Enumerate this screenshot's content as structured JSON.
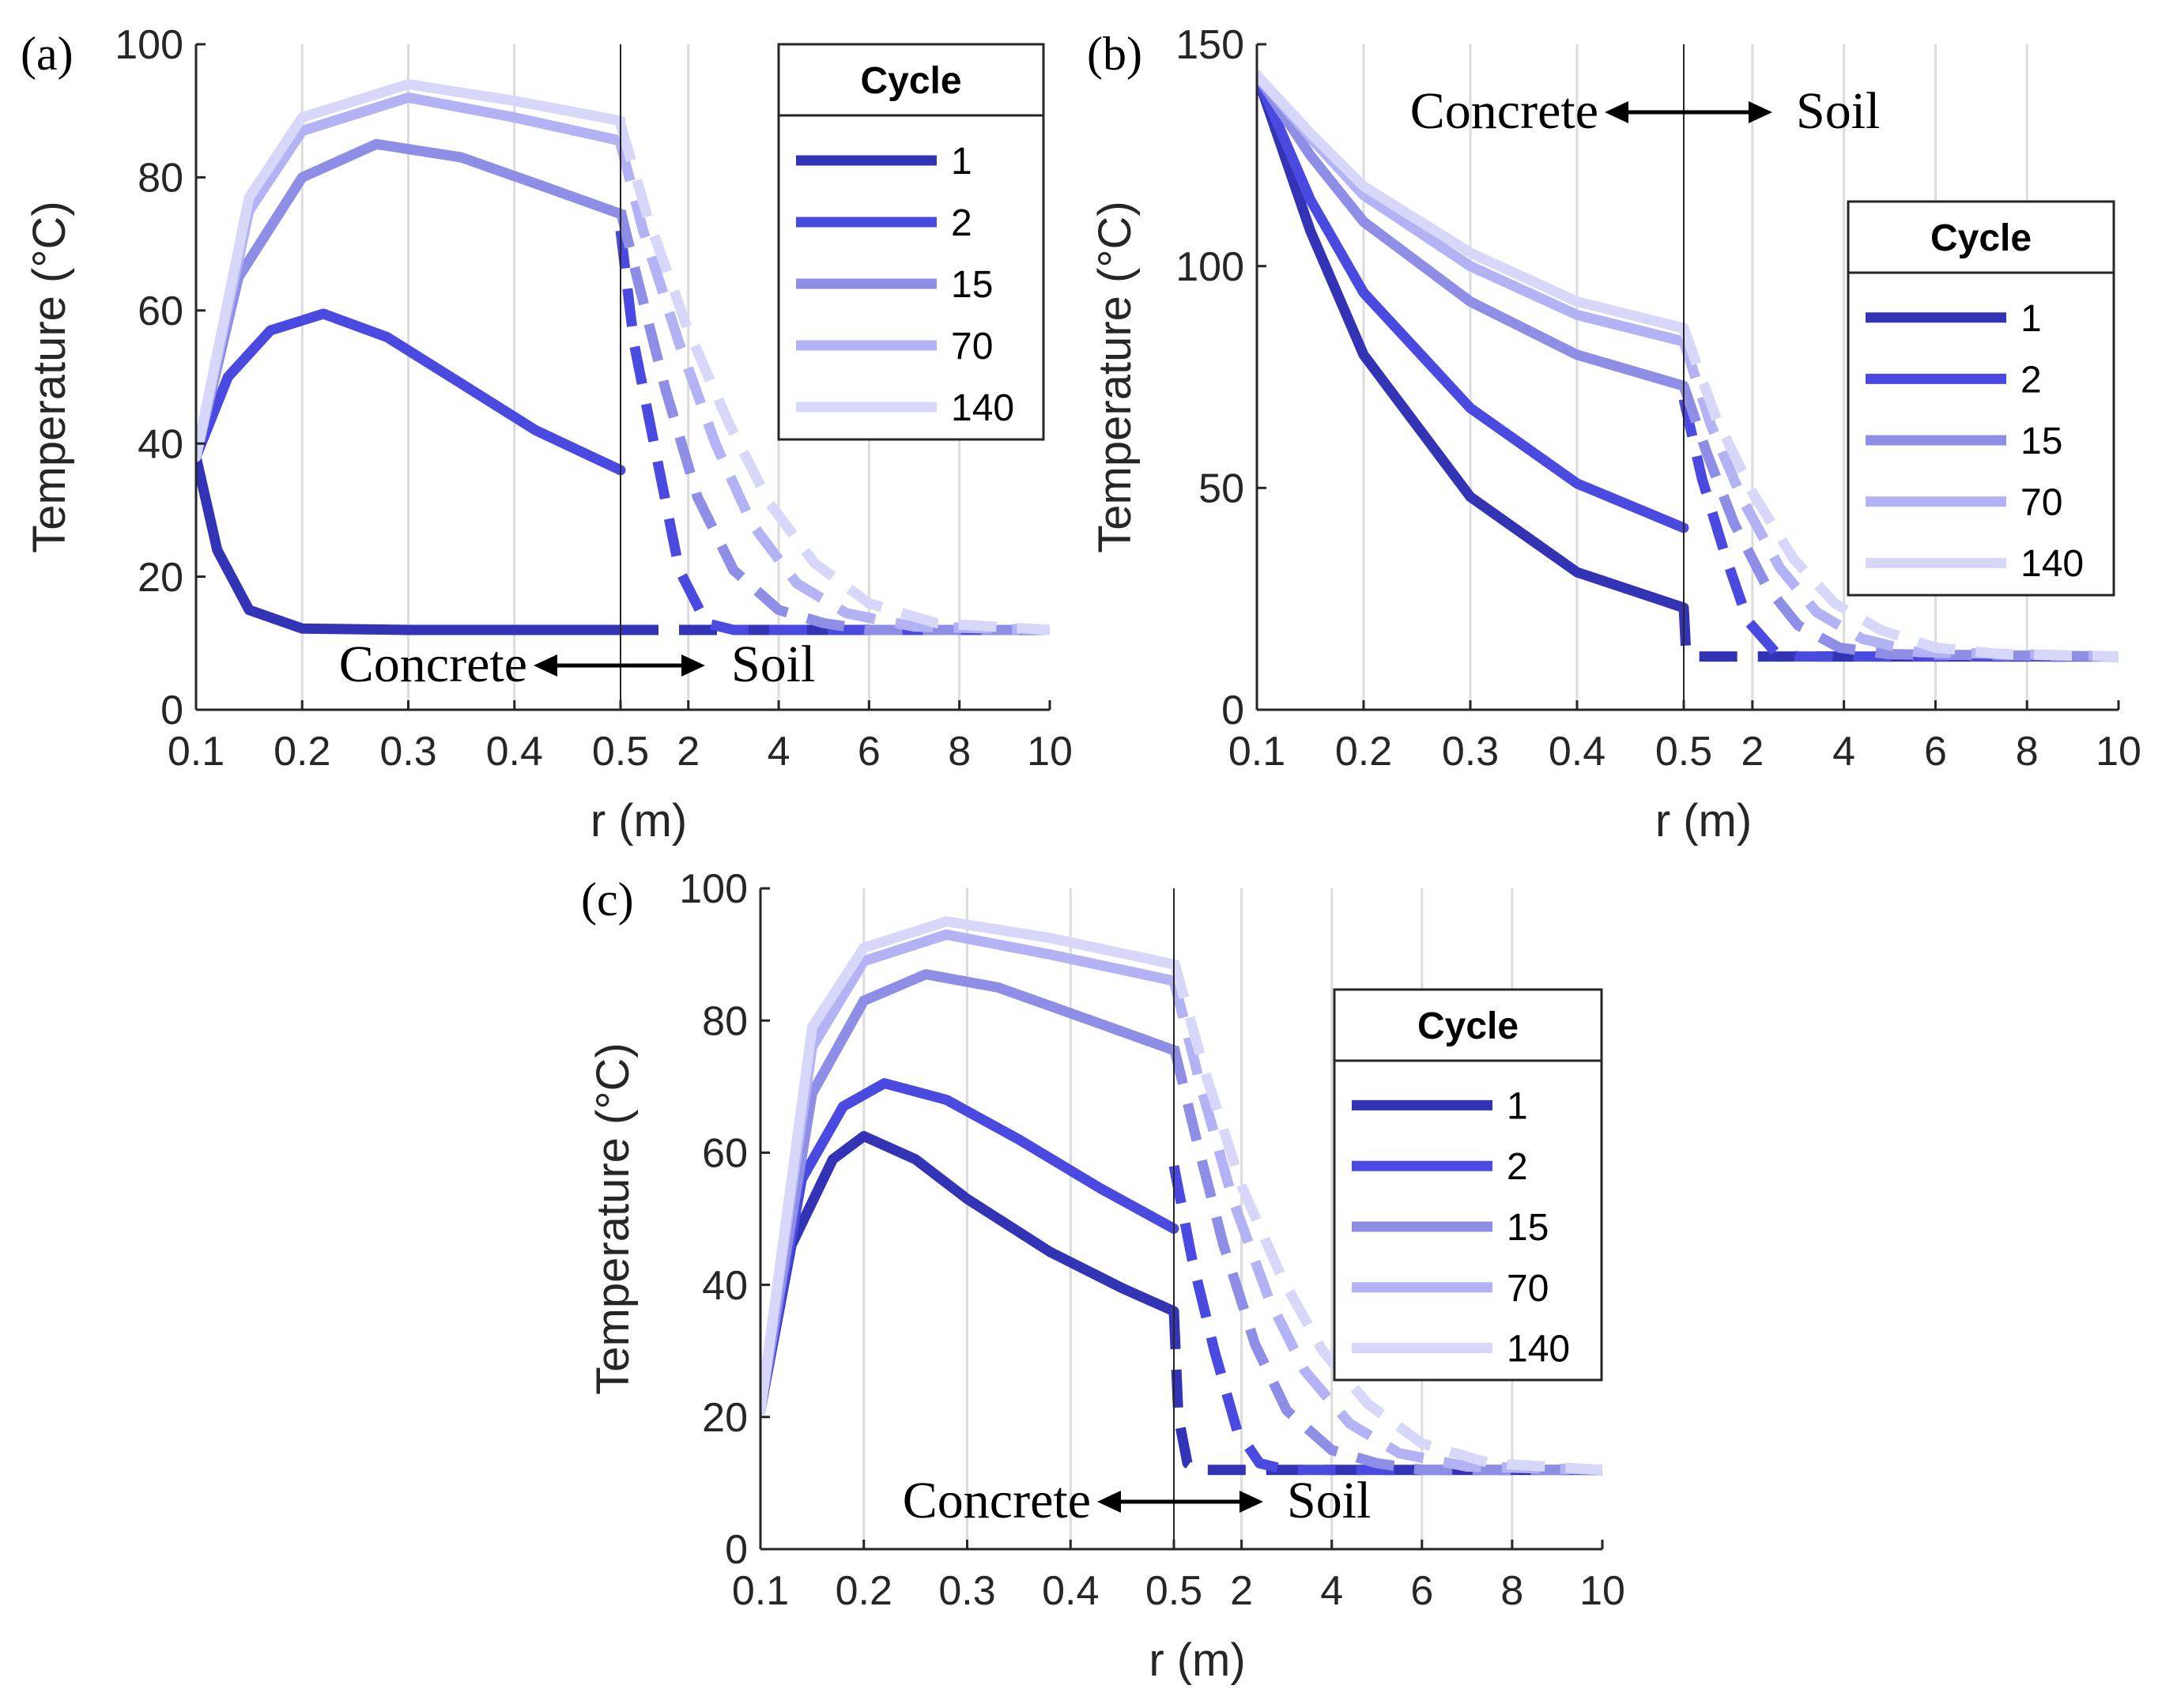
{
  "chart_data": [
    {
      "type": "line",
      "panel_label": "(a)",
      "xlabel": "r (m)",
      "ylabel": "Temperature (°C)",
      "ylim": [
        0,
        100
      ],
      "yticks": [
        "0",
        "20",
        "40",
        "60",
        "80",
        "100"
      ],
      "concrete_xlim": [
        0.1,
        0.5
      ],
      "soil_xlim": [
        0.5,
        10
      ],
      "xticks_concrete": [
        "0.1",
        "0.2",
        "0.3",
        "0.4",
        "0.5"
      ],
      "xticks_soil": [
        "2",
        "4",
        "6",
        "8",
        "10"
      ],
      "region_left": "Concrete",
      "region_right": "Soil",
      "legend_title": "Cycle",
      "ambient": 12,
      "series": [
        {
          "name": "1",
          "color": "#3333b5",
          "concrete": [
            [
              0.1,
              38
            ],
            [
              0.12,
              24
            ],
            [
              0.15,
              15
            ],
            [
              0.2,
              12.2
            ],
            [
              0.3,
              12
            ],
            [
              0.5,
              12
            ]
          ],
          "soil": [
            [
              0.5,
              12
            ],
            [
              1,
              12
            ],
            [
              10,
              12
            ]
          ]
        },
        {
          "name": "2",
          "color": "#4a4ae0",
          "concrete": [
            [
              0.1,
              38
            ],
            [
              0.13,
              50
            ],
            [
              0.17,
              57
            ],
            [
              0.22,
              59.5
            ],
            [
              0.28,
              56
            ],
            [
              0.35,
              49
            ],
            [
              0.42,
              42
            ],
            [
              0.5,
              36
            ]
          ],
          "soil": [
            [
              0.5,
              72
            ],
            [
              0.8,
              55
            ],
            [
              1.3,
              38
            ],
            [
              1.8,
              21
            ],
            [
              2.4,
              13
            ],
            [
              3,
              12
            ],
            [
              10,
              12
            ]
          ]
        },
        {
          "name": "15",
          "color": "#8e8ee6",
          "concrete": [
            [
              0.1,
              38
            ],
            [
              0.14,
              65
            ],
            [
              0.2,
              80
            ],
            [
              0.27,
              85
            ],
            [
              0.35,
              83
            ],
            [
              0.43,
              78.5
            ],
            [
              0.5,
              74.5
            ]
          ],
          "soil": [
            [
              0.5,
              75
            ],
            [
              0.9,
              64
            ],
            [
              1.5,
              48
            ],
            [
              2.2,
              32
            ],
            [
              3,
              21
            ],
            [
              4,
              15
            ],
            [
              5,
              13
            ],
            [
              6,
              12
            ],
            [
              10,
              12
            ]
          ]
        },
        {
          "name": "70",
          "color": "#b2b2f4",
          "concrete": [
            [
              0.1,
              38
            ],
            [
              0.15,
              75
            ],
            [
              0.2,
              87
            ],
            [
              0.3,
              92
            ],
            [
              0.4,
              89
            ],
            [
              0.5,
              85.5
            ]
          ],
          "soil": [
            [
              0.5,
              85
            ],
            [
              1,
              72
            ],
            [
              1.8,
              55
            ],
            [
              2.6,
              40
            ],
            [
              3.4,
              28
            ],
            [
              4.4,
              19
            ],
            [
              5.5,
              14.5
            ],
            [
              7,
              12.5
            ],
            [
              10,
              12
            ]
          ]
        },
        {
          "name": "140",
          "color": "#d7d7f9",
          "concrete": [
            [
              0.1,
              38
            ],
            [
              0.15,
              77
            ],
            [
              0.2,
              89
            ],
            [
              0.3,
              94
            ],
            [
              0.4,
              91.5
            ],
            [
              0.5,
              88.5
            ]
          ],
          "soil": [
            [
              0.5,
              88
            ],
            [
              1.1,
              74
            ],
            [
              2,
              57
            ],
            [
              2.9,
              43
            ],
            [
              3.8,
              31
            ],
            [
              4.8,
              22
            ],
            [
              6,
              16
            ],
            [
              7.5,
              13
            ],
            [
              10,
              12
            ]
          ]
        }
      ]
    },
    {
      "type": "line",
      "panel_label": "(b)",
      "xlabel": "r (m)",
      "ylabel": "Temperature (°C)",
      "ylim": [
        0,
        150
      ],
      "yticks": [
        "0",
        "50",
        "100",
        "150"
      ],
      "concrete_xlim": [
        0.1,
        0.5
      ],
      "soil_xlim": [
        0.5,
        10
      ],
      "xticks_concrete": [
        "0.1",
        "0.2",
        "0.3",
        "0.4",
        "0.5"
      ],
      "xticks_soil": [
        "2",
        "4",
        "6",
        "8",
        "10"
      ],
      "region_left": "Concrete",
      "region_right": "Soil",
      "legend_title": "Cycle",
      "ambient": 12,
      "series": [
        {
          "name": "1",
          "color": "#3333b5",
          "concrete": [
            [
              0.1,
              143
            ],
            [
              0.15,
              108
            ],
            [
              0.2,
              80
            ],
            [
              0.3,
              48
            ],
            [
              0.4,
              31
            ],
            [
              0.5,
              23
            ]
          ],
          "soil": [
            [
              0.5,
              23
            ],
            [
              0.55,
              13
            ],
            [
              0.8,
              12
            ],
            [
              10,
              12
            ]
          ]
        },
        {
          "name": "2",
          "color": "#4a4ae0",
          "concrete": [
            [
              0.1,
              143
            ],
            [
              0.15,
              115
            ],
            [
              0.2,
              94
            ],
            [
              0.3,
              68
            ],
            [
              0.4,
              51
            ],
            [
              0.5,
              41
            ]
          ],
          "soil": [
            [
              0.5,
              70
            ],
            [
              0.9,
              52
            ],
            [
              1.4,
              35
            ],
            [
              1.9,
              20
            ],
            [
              2.5,
              13
            ],
            [
              3,
              12
            ],
            [
              10,
              12
            ]
          ]
        },
        {
          "name": "15",
          "color": "#8e8ee6",
          "concrete": [
            [
              0.1,
              143
            ],
            [
              0.15,
              125
            ],
            [
              0.2,
              110
            ],
            [
              0.3,
              92
            ],
            [
              0.4,
              80
            ],
            [
              0.5,
              73
            ]
          ],
          "soil": [
            [
              0.5,
              73
            ],
            [
              1,
              58
            ],
            [
              1.6,
              42
            ],
            [
              2.3,
              28
            ],
            [
              3,
              19
            ],
            [
              3.9,
              14
            ],
            [
              5,
              12.5
            ],
            [
              10,
              12
            ]
          ]
        },
        {
          "name": "70",
          "color": "#b2b2f4",
          "concrete": [
            [
              0.1,
              143
            ],
            [
              0.15,
              129
            ],
            [
              0.2,
              116
            ],
            [
              0.3,
              100
            ],
            [
              0.4,
              89
            ],
            [
              0.5,
              83
            ]
          ],
          "soil": [
            [
              0.5,
              83
            ],
            [
              1.1,
              64
            ],
            [
              1.8,
              47
            ],
            [
              2.6,
              32
            ],
            [
              3.4,
              22
            ],
            [
              4.4,
              16
            ],
            [
              5.6,
              13
            ],
            [
              10,
              12
            ]
          ]
        },
        {
          "name": "140",
          "color": "#d7d7f9",
          "concrete": [
            [
              0.1,
              143
            ],
            [
              0.15,
              130
            ],
            [
              0.2,
              118
            ],
            [
              0.3,
              103
            ],
            [
              0.4,
              92
            ],
            [
              0.5,
              86
            ]
          ],
          "soil": [
            [
              0.5,
              86
            ],
            [
              1.2,
              66
            ],
            [
              2,
              49
            ],
            [
              2.9,
              34
            ],
            [
              3.8,
              24
            ],
            [
              4.8,
              18
            ],
            [
              6,
              14
            ],
            [
              7.5,
              12.5
            ],
            [
              10,
              12
            ]
          ]
        }
      ]
    },
    {
      "type": "line",
      "panel_label": "(c)",
      "xlabel": "r (m)",
      "ylabel": "Temperature (°C)",
      "ylim": [
        0,
        100
      ],
      "yticks": [
        "0",
        "20",
        "40",
        "60",
        "80",
        "100"
      ],
      "concrete_xlim": [
        0.1,
        0.5
      ],
      "soil_xlim": [
        0.5,
        10
      ],
      "xticks_concrete": [
        "0.1",
        "0.2",
        "0.3",
        "0.4",
        "0.5"
      ],
      "xticks_soil": [
        "2",
        "4",
        "6",
        "8",
        "10"
      ],
      "region_left": "Concrete",
      "region_right": "Soil",
      "legend_title": "Cycle",
      "ambient": 12,
      "series": [
        {
          "name": "1",
          "color": "#3333b5",
          "concrete": [
            [
              0.1,
              21
            ],
            [
              0.13,
              46
            ],
            [
              0.17,
              59
            ],
            [
              0.2,
              62.5
            ],
            [
              0.25,
              59
            ],
            [
              0.3,
              53
            ],
            [
              0.38,
              45
            ],
            [
              0.45,
              39.5
            ],
            [
              0.5,
              36
            ]
          ],
          "soil": [
            [
              0.5,
              36
            ],
            [
              0.6,
              20
            ],
            [
              0.8,
              13
            ],
            [
              1,
              12
            ],
            [
              10,
              12
            ]
          ]
        },
        {
          "name": "2",
          "color": "#4a4ae0",
          "concrete": [
            [
              0.1,
              21
            ],
            [
              0.14,
              56
            ],
            [
              0.18,
              67
            ],
            [
              0.22,
              70.5
            ],
            [
              0.28,
              68
            ],
            [
              0.35,
              62
            ],
            [
              0.43,
              54.5
            ],
            [
              0.5,
              48.5
            ]
          ],
          "soil": [
            [
              0.5,
              58
            ],
            [
              0.9,
              44
            ],
            [
              1.4,
              30
            ],
            [
              1.9,
              18
            ],
            [
              2.4,
              13
            ],
            [
              3,
              12
            ],
            [
              10,
              12
            ]
          ]
        },
        {
          "name": "15",
          "color": "#8e8ee6",
          "concrete": [
            [
              0.1,
              21
            ],
            [
              0.15,
              69
            ],
            [
              0.2,
              83
            ],
            [
              0.26,
              87
            ],
            [
              0.33,
              85
            ],
            [
              0.42,
              80
            ],
            [
              0.5,
              75.5
            ]
          ],
          "soil": [
            [
              0.5,
              76
            ],
            [
              1,
              62
            ],
            [
              1.6,
              46
            ],
            [
              2.3,
              31
            ],
            [
              3,
              21
            ],
            [
              4,
              15
            ],
            [
              5,
              13
            ],
            [
              6,
              12
            ],
            [
              10,
              12
            ]
          ]
        },
        {
          "name": "70",
          "color": "#b2b2f4",
          "concrete": [
            [
              0.1,
              21
            ],
            [
              0.15,
              76
            ],
            [
              0.2,
              89
            ],
            [
              0.28,
              93
            ],
            [
              0.38,
              90
            ],
            [
              0.5,
              86
            ]
          ],
          "soil": [
            [
              0.5,
              86
            ],
            [
              1.1,
              70
            ],
            [
              1.8,
              53
            ],
            [
              2.6,
              38
            ],
            [
              3.4,
              27
            ],
            [
              4.4,
              19
            ],
            [
              5.5,
              14.5
            ],
            [
              7,
              12.5
            ],
            [
              10,
              12
            ]
          ]
        },
        {
          "name": "140",
          "color": "#d7d7f9",
          "concrete": [
            [
              0.1,
              21
            ],
            [
              0.15,
              79
            ],
            [
              0.2,
              91
            ],
            [
              0.28,
              95
            ],
            [
              0.38,
              92.5
            ],
            [
              0.5,
              88.5
            ]
          ],
          "soil": [
            [
              0.5,
              89
            ],
            [
              1.2,
              72
            ],
            [
              2,
              55
            ],
            [
              2.9,
              41
            ],
            [
              3.8,
              30
            ],
            [
              4.8,
              22
            ],
            [
              6,
              16
            ],
            [
              7.5,
              13
            ],
            [
              10,
              12
            ]
          ]
        }
      ]
    }
  ]
}
